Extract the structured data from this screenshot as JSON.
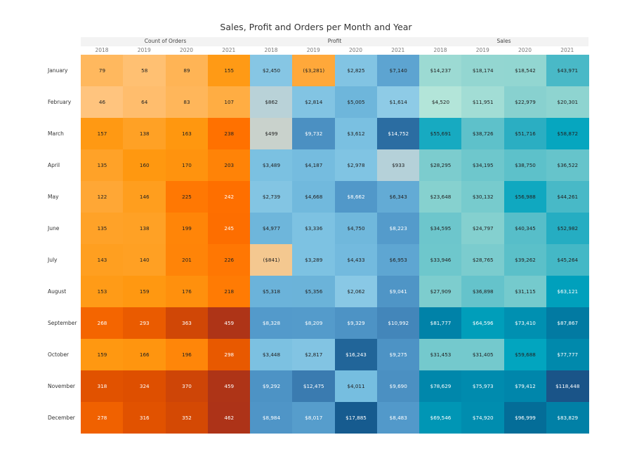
{
  "chart_data": {
    "type": "heatmap",
    "title": "Sales, Profit and Orders per Month and Year",
    "measures": [
      "Count of Orders",
      "Profit",
      "Sales"
    ],
    "years": [
      "2018",
      "2019",
      "2020",
      "2021"
    ],
    "months": [
      "January",
      "February",
      "March",
      "April",
      "May",
      "June",
      "July",
      "August",
      "September",
      "October",
      "November",
      "December"
    ],
    "series": [
      {
        "name": "Count of Orders",
        "format": "count",
        "values": [
          [
            79,
            58,
            89,
            155
          ],
          [
            46,
            64,
            83,
            107
          ],
          [
            157,
            138,
            163,
            238
          ],
          [
            135,
            160,
            170,
            203
          ],
          [
            122,
            146,
            225,
            242
          ],
          [
            135,
            138,
            199,
            245
          ],
          [
            143,
            140,
            201,
            226
          ],
          [
            153,
            159,
            176,
            218
          ],
          [
            268,
            293,
            363,
            459
          ],
          [
            159,
            166,
            196,
            298
          ],
          [
            318,
            324,
            370,
            459
          ],
          [
            278,
            316,
            352,
            462
          ]
        ]
      },
      {
        "name": "Profit",
        "format": "currency",
        "values": [
          [
            2450,
            -3281,
            2825,
            7140
          ],
          [
            862,
            2814,
            5005,
            1614
          ],
          [
            499,
            9732,
            3612,
            14752
          ],
          [
            3489,
            4187,
            2978,
            933
          ],
          [
            2739,
            4668,
            8662,
            6343
          ],
          [
            4977,
            3336,
            4750,
            8223
          ],
          [
            -841,
            3289,
            4433,
            6953
          ],
          [
            5318,
            5356,
            2062,
            9041
          ],
          [
            8328,
            8209,
            9329,
            10992
          ],
          [
            3448,
            2817,
            16243,
            9275
          ],
          [
            9292,
            12475,
            4011,
            9690
          ],
          [
            8984,
            8017,
            17885,
            8483
          ]
        ]
      },
      {
        "name": "Sales",
        "format": "currency",
        "values": [
          [
            14237,
            18174,
            18542,
            43971
          ],
          [
            4520,
            11951,
            22979,
            20301
          ],
          [
            55691,
            38726,
            51716,
            58872
          ],
          [
            28295,
            34195,
            38750,
            36522
          ],
          [
            23648,
            30132,
            56988,
            44261
          ],
          [
            34595,
            24797,
            40345,
            52982
          ],
          [
            33946,
            28765,
            39262,
            45264
          ],
          [
            27909,
            36898,
            31115,
            63121
          ],
          [
            81777,
            64596,
            73410,
            87867
          ],
          [
            31453,
            31405,
            59688,
            77777
          ],
          [
            78629,
            75973,
            79412,
            118448
          ],
          [
            69546,
            74920,
            96999,
            83829
          ]
        ]
      }
    ],
    "colors": {
      "orders": "orange-red sequential",
      "profit": "orange-blue diverging",
      "sales": "teal-blue sequential"
    }
  }
}
